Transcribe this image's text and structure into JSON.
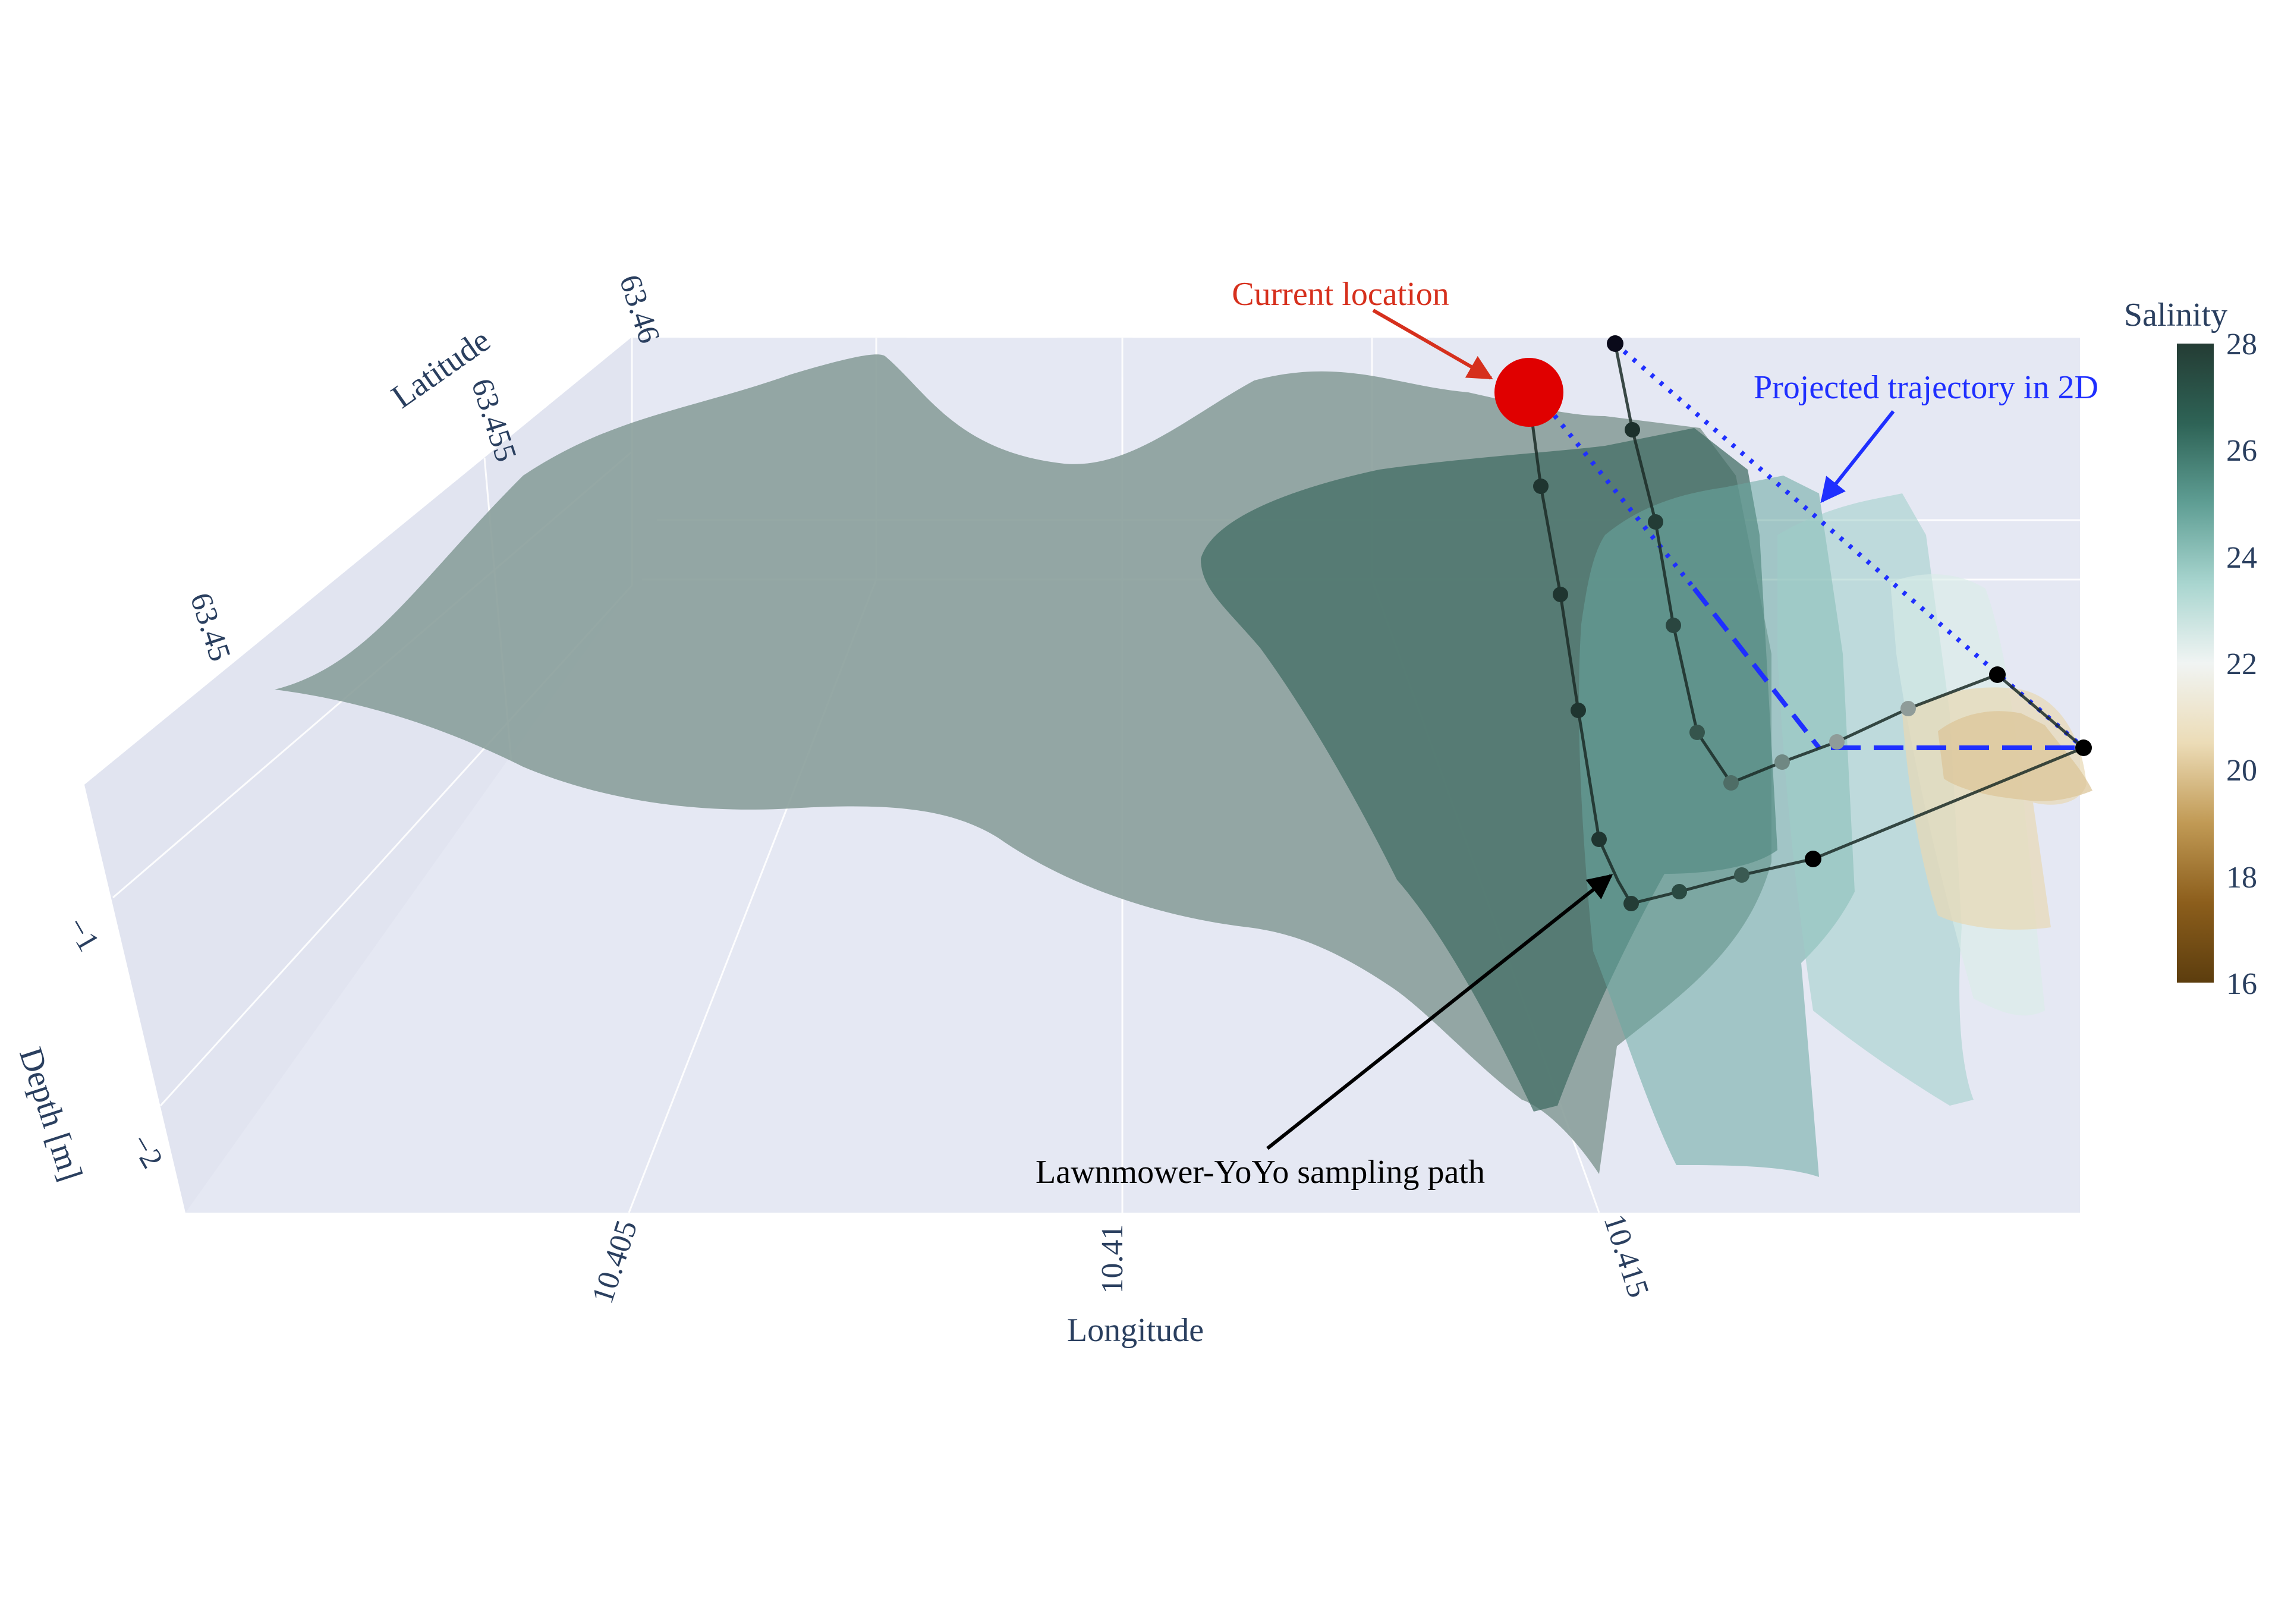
{
  "chart_data": {
    "type": "3d-surface",
    "title": "",
    "axes": {
      "x": {
        "label": "Longitude",
        "ticks": [
          "10.405",
          "10.41",
          "10.415"
        ]
      },
      "y": {
        "label": "Latitude",
        "ticks": [
          "63.45",
          "63.455",
          "63.46"
        ]
      },
      "z": {
        "label": "Depth [m]",
        "ticks": [
          "−1",
          "−2"
        ]
      }
    },
    "colorbar": {
      "title": "Salinity",
      "ticks": [
        "28",
        "26",
        "24",
        "22",
        "20",
        "18",
        "16"
      ],
      "range": [
        16,
        28
      ],
      "colors": [
        "#5c3d0e",
        "#8c5e1c",
        "#c19a55",
        "#ecdcb7",
        "#f0f4f3",
        "#a8d5cf",
        "#5f9e94",
        "#2e6356",
        "#243c34"
      ]
    },
    "annotations": {
      "current_location": "Current location",
      "projected": "Projected trajectory in 2D",
      "path": "Lawnmower-YoYo sampling path"
    },
    "colors": {
      "current_location": "#d6301d",
      "projected": "#1f2fff",
      "marker": "#e00000",
      "surface_main": "#8a9e9b",
      "scene_background": "#e5e8f3"
    }
  }
}
